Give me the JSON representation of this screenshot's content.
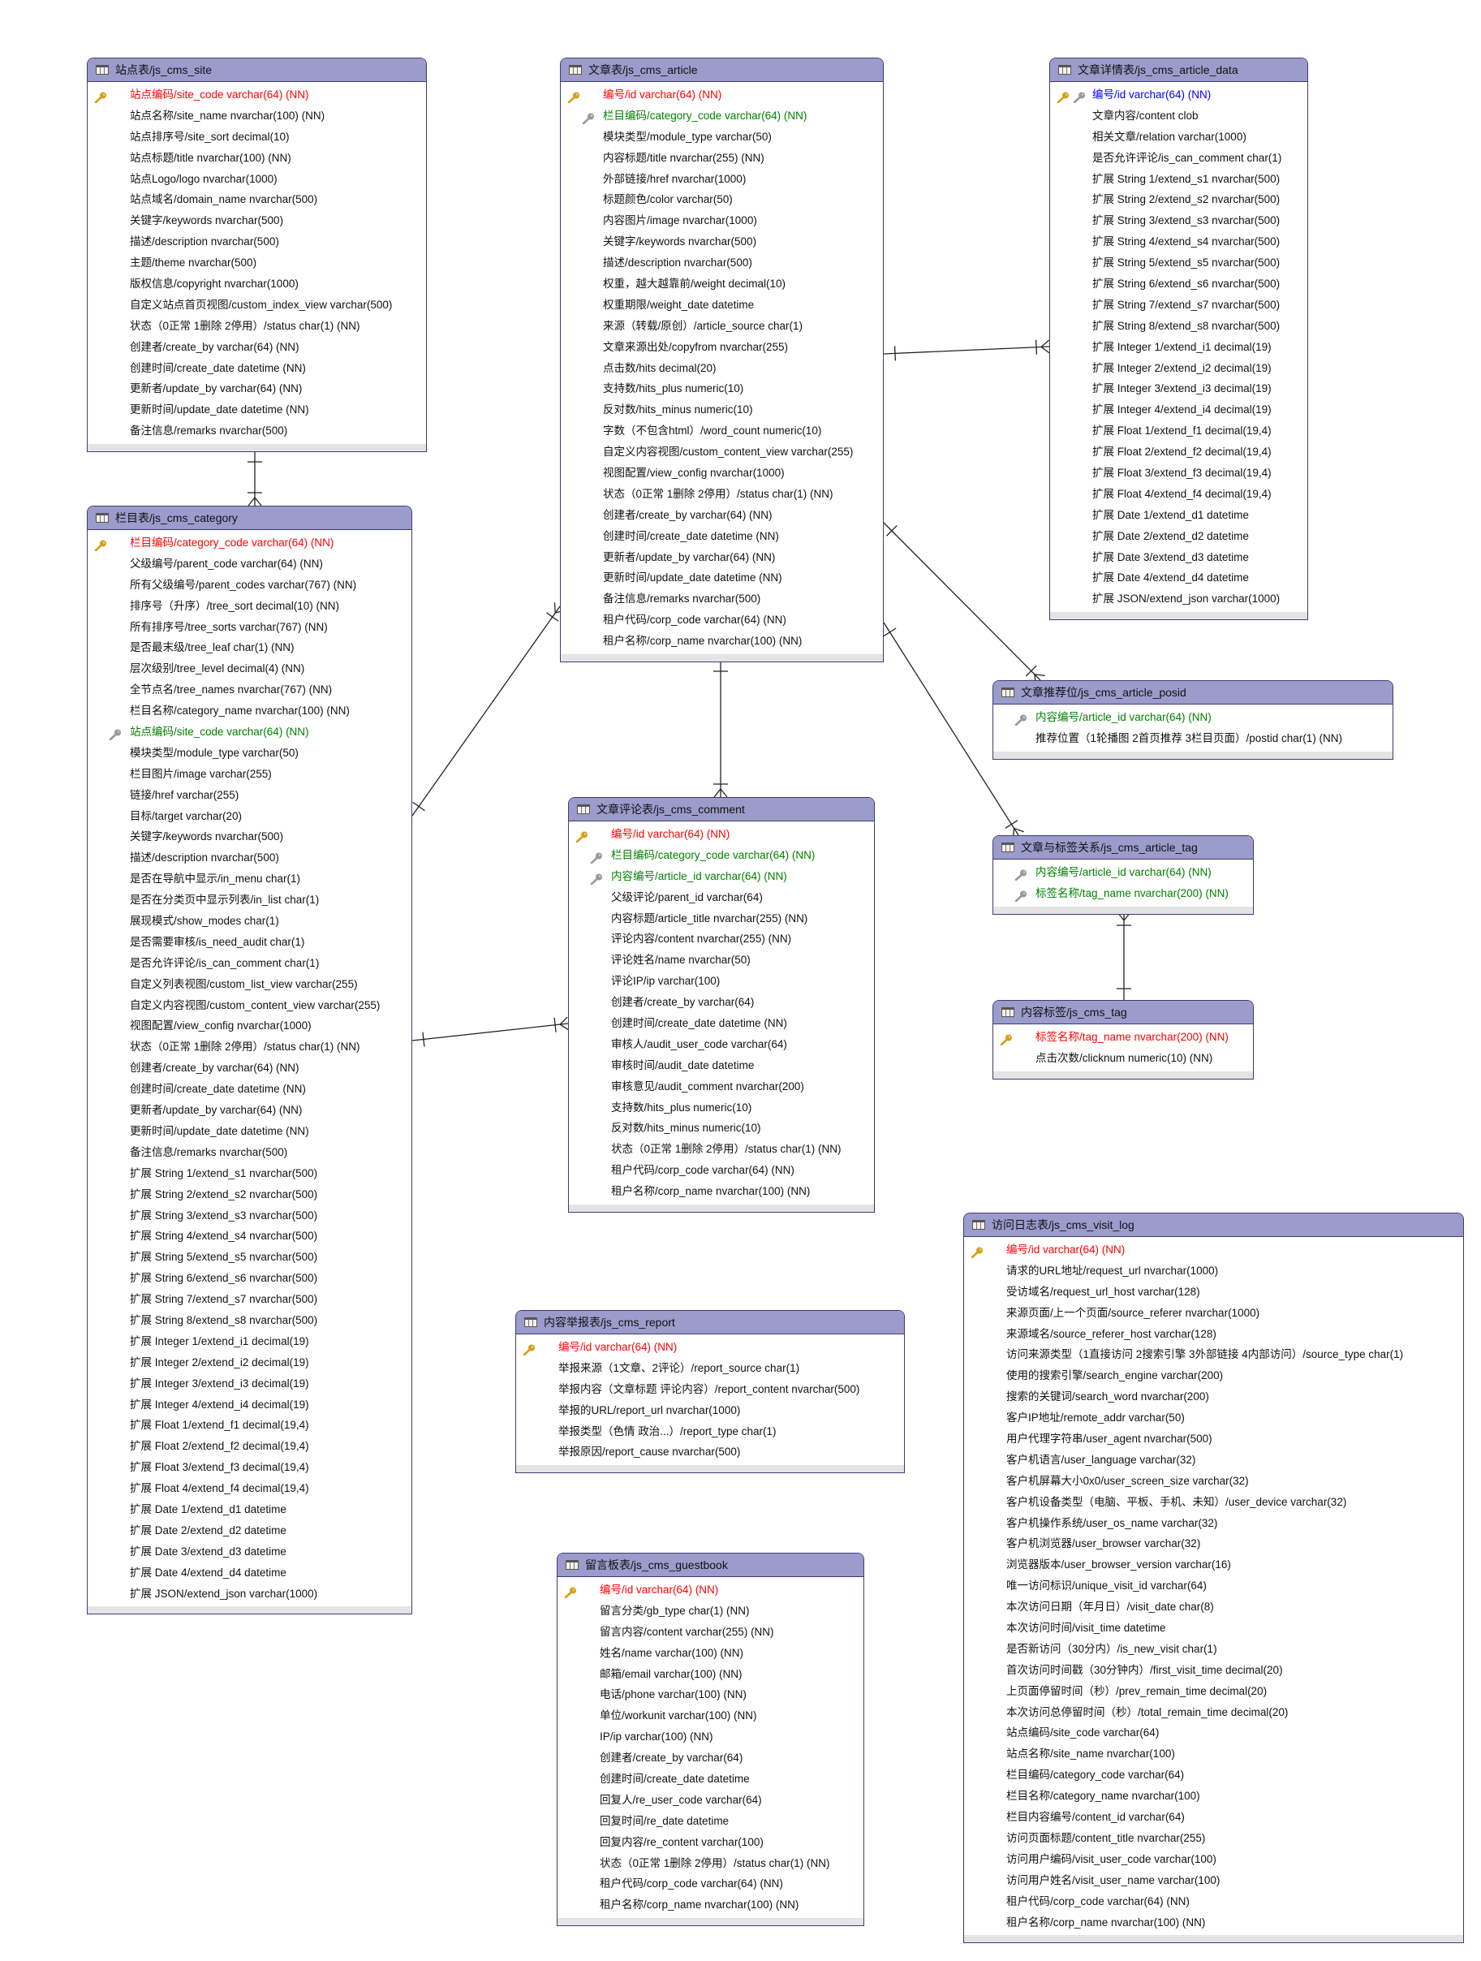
{
  "colors": {
    "header": "#9b9bcc",
    "border": "#3c3c78",
    "primary_key": "#ff0000",
    "foreign_key": "#008000",
    "primary_foreign_key": "#0000ff",
    "pk_icon": "#d4a017",
    "fk_icon": "#999999"
  },
  "tables": [
    {
      "id": "site",
      "title": "站点表/js_cms_site",
      "fields": [
        {
          "text": "站点编码/site_code varchar(64) (NN)",
          "kind": "pk"
        },
        {
          "text": "站点名称/site_name nvarchar(100) (NN)"
        },
        {
          "text": "站点排序号/site_sort decimal(10)"
        },
        {
          "text": "站点标题/title nvarchar(100) (NN)"
        },
        {
          "text": "站点Logo/logo nvarchar(1000)"
        },
        {
          "text": "站点域名/domain_name nvarchar(500)"
        },
        {
          "text": "关键字/keywords nvarchar(500)"
        },
        {
          "text": "描述/description nvarchar(500)"
        },
        {
          "text": "主题/theme nvarchar(500)"
        },
        {
          "text": "版权信息/copyright nvarchar(1000)"
        },
        {
          "text": "自定义站点首页视图/custom_index_view varchar(500)"
        },
        {
          "text": "状态（0正常 1删除 2停用）/status char(1) (NN)"
        },
        {
          "text": "创建者/create_by varchar(64) (NN)"
        },
        {
          "text": "创建时间/create_date datetime (NN)"
        },
        {
          "text": "更新者/update_by varchar(64) (NN)"
        },
        {
          "text": "更新时间/update_date datetime (NN)"
        },
        {
          "text": "备注信息/remarks nvarchar(500)"
        }
      ]
    },
    {
      "id": "article",
      "title": "文章表/js_cms_article",
      "fields": [
        {
          "text": "编号/id varchar(64) (NN)",
          "kind": "pk"
        },
        {
          "text": "栏目编码/category_code varchar(64) (NN)",
          "kind": "fk"
        },
        {
          "text": "模块类型/module_type varchar(50)"
        },
        {
          "text": "内容标题/title nvarchar(255) (NN)"
        },
        {
          "text": "外部链接/href nvarchar(1000)"
        },
        {
          "text": "标题颜色/color varchar(50)"
        },
        {
          "text": "内容图片/image nvarchar(1000)"
        },
        {
          "text": "关键字/keywords nvarchar(500)"
        },
        {
          "text": "描述/description nvarchar(500)"
        },
        {
          "text": "权重，越大越靠前/weight decimal(10)"
        },
        {
          "text": "权重期限/weight_date datetime"
        },
        {
          "text": "来源（转载/原创）/article_source char(1)"
        },
        {
          "text": "文章来源出处/copyfrom nvarchar(255)"
        },
        {
          "text": "点击数/hits decimal(20)"
        },
        {
          "text": "支持数/hits_plus numeric(10)"
        },
        {
          "text": "反对数/hits_minus numeric(10)"
        },
        {
          "text": "字数（不包含html）/word_count numeric(10)"
        },
        {
          "text": "自定义内容视图/custom_content_view varchar(255)"
        },
        {
          "text": "视图配置/view_config nvarchar(1000)"
        },
        {
          "text": "状态（0正常 1删除 2停用）/status char(1) (NN)"
        },
        {
          "text": "创建者/create_by varchar(64) (NN)"
        },
        {
          "text": "创建时间/create_date datetime (NN)"
        },
        {
          "text": "更新者/update_by varchar(64) (NN)"
        },
        {
          "text": "更新时间/update_date datetime (NN)"
        },
        {
          "text": "备注信息/remarks nvarchar(500)"
        },
        {
          "text": "租户代码/corp_code varchar(64) (NN)"
        },
        {
          "text": "租户名称/corp_name nvarchar(100) (NN)"
        }
      ]
    },
    {
      "id": "article_data",
      "title": "文章详情表/js_cms_article_data",
      "fields": [
        {
          "text": "编号/id varchar(64) (NN)",
          "kind": "pkfk"
        },
        {
          "text": "文章内容/content clob"
        },
        {
          "text": "相关文章/relation varchar(1000)"
        },
        {
          "text": "是否允许评论/is_can_comment char(1)"
        },
        {
          "text": "扩展 String 1/extend_s1 nvarchar(500)"
        },
        {
          "text": "扩展 String 2/extend_s2 nvarchar(500)"
        },
        {
          "text": "扩展 String 3/extend_s3 nvarchar(500)"
        },
        {
          "text": "扩展 String 4/extend_s4 nvarchar(500)"
        },
        {
          "text": "扩展 String 5/extend_s5 nvarchar(500)"
        },
        {
          "text": "扩展 String 6/extend_s6 nvarchar(500)"
        },
        {
          "text": "扩展 String 7/extend_s7 nvarchar(500)"
        },
        {
          "text": "扩展 String 8/extend_s8 nvarchar(500)"
        },
        {
          "text": "扩展 Integer 1/extend_i1 decimal(19)"
        },
        {
          "text": "扩展 Integer 2/extend_i2 decimal(19)"
        },
        {
          "text": "扩展 Integer 3/extend_i3 decimal(19)"
        },
        {
          "text": "扩展 Integer 4/extend_i4 decimal(19)"
        },
        {
          "text": "扩展 Float 1/extend_f1 decimal(19,4)"
        },
        {
          "text": "扩展 Float 2/extend_f2 decimal(19,4)"
        },
        {
          "text": "扩展 Float 3/extend_f3 decimal(19,4)"
        },
        {
          "text": "扩展 Float 4/extend_f4 decimal(19,4)"
        },
        {
          "text": "扩展 Date 1/extend_d1 datetime"
        },
        {
          "text": "扩展 Date 2/extend_d2 datetime"
        },
        {
          "text": "扩展 Date 3/extend_d3 datetime"
        },
        {
          "text": "扩展 Date 4/extend_d4 datetime"
        },
        {
          "text": "扩展 JSON/extend_json varchar(1000)"
        }
      ]
    },
    {
      "id": "category",
      "title": "栏目表/js_cms_category",
      "fields": [
        {
          "text": "栏目编码/category_code varchar(64) (NN)",
          "kind": "pk"
        },
        {
          "text": "父级编号/parent_code varchar(64) (NN)"
        },
        {
          "text": "所有父级编号/parent_codes varchar(767) (NN)"
        },
        {
          "text": "排序号（升序）/tree_sort decimal(10) (NN)"
        },
        {
          "text": "所有排序号/tree_sorts varchar(767) (NN)"
        },
        {
          "text": "是否最末级/tree_leaf char(1) (NN)"
        },
        {
          "text": "层次级别/tree_level decimal(4) (NN)"
        },
        {
          "text": "全节点名/tree_names nvarchar(767) (NN)"
        },
        {
          "text": "栏目名称/category_name nvarchar(100) (NN)"
        },
        {
          "text": "站点编码/site_code varchar(64) (NN)",
          "kind": "fk"
        },
        {
          "text": "模块类型/module_type varchar(50)"
        },
        {
          "text": "栏目图片/image varchar(255)"
        },
        {
          "text": "链接/href varchar(255)"
        },
        {
          "text": "目标/target varchar(20)"
        },
        {
          "text": "关键字/keywords nvarchar(500)"
        },
        {
          "text": "描述/description nvarchar(500)"
        },
        {
          "text": "是否在导航中显示/in_menu char(1)"
        },
        {
          "text": "是否在分类页中显示列表/in_list char(1)"
        },
        {
          "text": "展现模式/show_modes char(1)"
        },
        {
          "text": "是否需要审核/is_need_audit char(1)"
        },
        {
          "text": "是否允许评论/is_can_comment char(1)"
        },
        {
          "text": "自定义列表视图/custom_list_view varchar(255)"
        },
        {
          "text": "自定义内容视图/custom_content_view varchar(255)"
        },
        {
          "text": "视图配置/view_config nvarchar(1000)"
        },
        {
          "text": "状态（0正常 1删除 2停用）/status char(1) (NN)"
        },
        {
          "text": "创建者/create_by varchar(64) (NN)"
        },
        {
          "text": "创建时间/create_date datetime (NN)"
        },
        {
          "text": "更新者/update_by varchar(64) (NN)"
        },
        {
          "text": "更新时间/update_date datetime (NN)"
        },
        {
          "text": "备注信息/remarks nvarchar(500)"
        },
        {
          "text": "扩展 String 1/extend_s1 nvarchar(500)"
        },
        {
          "text": "扩展 String 2/extend_s2 nvarchar(500)"
        },
        {
          "text": "扩展 String 3/extend_s3 nvarchar(500)"
        },
        {
          "text": "扩展 String 4/extend_s4 nvarchar(500)"
        },
        {
          "text": "扩展 String 5/extend_s5 nvarchar(500)"
        },
        {
          "text": "扩展 String 6/extend_s6 nvarchar(500)"
        },
        {
          "text": "扩展 String 7/extend_s7 nvarchar(500)"
        },
        {
          "text": "扩展 String 8/extend_s8 nvarchar(500)"
        },
        {
          "text": "扩展 Integer 1/extend_i1 decimal(19)"
        },
        {
          "text": "扩展 Integer 2/extend_i2 decimal(19)"
        },
        {
          "text": "扩展 Integer 3/extend_i3 decimal(19)"
        },
        {
          "text": "扩展 Integer 4/extend_i4 decimal(19)"
        },
        {
          "text": "扩展 Float 1/extend_f1 decimal(19,4)"
        },
        {
          "text": "扩展 Float 2/extend_f2 decimal(19,4)"
        },
        {
          "text": "扩展 Float 3/extend_f3 decimal(19,4)"
        },
        {
          "text": "扩展 Float 4/extend_f4 decimal(19,4)"
        },
        {
          "text": "扩展 Date 1/extend_d1 datetime"
        },
        {
          "text": "扩展 Date 2/extend_d2 datetime"
        },
        {
          "text": "扩展 Date 3/extend_d3 datetime"
        },
        {
          "text": "扩展 Date 4/extend_d4 datetime"
        },
        {
          "text": "扩展 JSON/extend_json varchar(1000)"
        }
      ]
    },
    {
      "id": "posid",
      "title": "文章推荐位/js_cms_article_posid",
      "fields": [
        {
          "text": "内容编号/article_id varchar(64) (NN)",
          "kind": "fk"
        },
        {
          "text": "推荐位置（1轮播图 2首页推荐 3栏目页面）/postid char(1) (NN)"
        }
      ]
    },
    {
      "id": "comment",
      "title": "文章评论表/js_cms_comment",
      "fields": [
        {
          "text": "编号/id varchar(64) (NN)",
          "kind": "pk"
        },
        {
          "text": "栏目编码/category_code varchar(64) (NN)",
          "kind": "fk"
        },
        {
          "text": "内容编号/article_id varchar(64) (NN)",
          "kind": "fk"
        },
        {
          "text": "父级评论/parent_id varchar(64)"
        },
        {
          "text": "内容标题/article_title nvarchar(255) (NN)"
        },
        {
          "text": "评论内容/content nvarchar(255) (NN)"
        },
        {
          "text": "评论姓名/name nvarchar(50)"
        },
        {
          "text": "评论IP/ip varchar(100)"
        },
        {
          "text": "创建者/create_by varchar(64)"
        },
        {
          "text": "创建时间/create_date datetime (NN)"
        },
        {
          "text": "审核人/audit_user_code varchar(64)"
        },
        {
          "text": "审核时间/audit_date datetime"
        },
        {
          "text": "审核意见/audit_comment nvarchar(200)"
        },
        {
          "text": "支持数/hits_plus numeric(10)"
        },
        {
          "text": "反对数/hits_minus numeric(10)"
        },
        {
          "text": "状态（0正常 1删除 2停用）/status char(1) (NN)"
        },
        {
          "text": "租户代码/corp_code varchar(64) (NN)"
        },
        {
          "text": "租户名称/corp_name nvarchar(100) (NN)"
        }
      ]
    },
    {
      "id": "article_tag",
      "title": "文章与标签关系/js_cms_article_tag",
      "fields": [
        {
          "text": "内容编号/article_id varchar(64) (NN)",
          "kind": "fk"
        },
        {
          "text": "标签名称/tag_name nvarchar(200) (NN)",
          "kind": "fk"
        }
      ]
    },
    {
      "id": "tag",
      "title": "内容标签/js_cms_tag",
      "fields": [
        {
          "text": "标签名称/tag_name nvarchar(200) (NN)",
          "kind": "pk"
        },
        {
          "text": "点击次数/clicknum numeric(10) (NN)"
        }
      ]
    },
    {
      "id": "visit_log",
      "title": "访问日志表/js_cms_visit_log",
      "fields": [
        {
          "text": "编号/id varchar(64) (NN)",
          "kind": "pk"
        },
        {
          "text": "请求的URL地址/request_url nvarchar(1000)"
        },
        {
          "text": "受访域名/request_url_host varchar(128)"
        },
        {
          "text": "来源页面/上一个页面/source_referer nvarchar(1000)"
        },
        {
          "text": "来源域名/source_referer_host varchar(128)"
        },
        {
          "text": "访问来源类型（1直接访问 2搜索引擎 3外部链接 4内部访问）/source_type char(1)"
        },
        {
          "text": "使用的搜索引擎/search_engine varchar(200)"
        },
        {
          "text": "搜索的关键词/search_word nvarchar(200)"
        },
        {
          "text": "客户IP地址/remote_addr varchar(50)"
        },
        {
          "text": "用户代理字符串/user_agent nvarchar(500)"
        },
        {
          "text": "客户机语言/user_language varchar(32)"
        },
        {
          "text": "客户机屏幕大小0x0/user_screen_size varchar(32)"
        },
        {
          "text": "客户机设备类型（电脑、平板、手机、未知）/user_device varchar(32)"
        },
        {
          "text": "客户机操作系统/user_os_name varchar(32)"
        },
        {
          "text": "客户机浏览器/user_browser varchar(32)"
        },
        {
          "text": "浏览器版本/user_browser_version varchar(16)"
        },
        {
          "text": "唯一访问标识/unique_visit_id varchar(64)"
        },
        {
          "text": "本次访问日期（年月日）/visit_date char(8)"
        },
        {
          "text": "本次访问时间/visit_time datetime"
        },
        {
          "text": "是否新访问（30分内）/is_new_visit char(1)"
        },
        {
          "text": "首次访问时间戳（30分钟内）/first_visit_time decimal(20)"
        },
        {
          "text": "上页面停留时间（秒）/prev_remain_time decimal(20)"
        },
        {
          "text": "本次访问总停留时间（秒）/total_remain_time decimal(20)"
        },
        {
          "text": "站点编码/site_code varchar(64)"
        },
        {
          "text": "站点名称/site_name nvarchar(100)"
        },
        {
          "text": "栏目编码/category_code varchar(64)"
        },
        {
          "text": "栏目名称/category_name nvarchar(100)"
        },
        {
          "text": "栏目内容编号/content_id varchar(64)"
        },
        {
          "text": "访问页面标题/content_title nvarchar(255)"
        },
        {
          "text": "访问用户编码/visit_user_code varchar(100)"
        },
        {
          "text": "访问用户姓名/visit_user_name varchar(100)"
        },
        {
          "text": "租户代码/corp_code varchar(64) (NN)"
        },
        {
          "text": "租户名称/corp_name nvarchar(100) (NN)"
        }
      ]
    },
    {
      "id": "report",
      "title": "内容举报表/js_cms_report",
      "fields": [
        {
          "text": "编号/id varchar(64) (NN)",
          "kind": "pk"
        },
        {
          "text": "举报来源（1文章、2评论）/report_source char(1)"
        },
        {
          "text": "举报内容（文章标题 评论内容）/report_content nvarchar(500)"
        },
        {
          "text": "举报的URL/report_url nvarchar(1000)"
        },
        {
          "text": "举报类型（色情 政治...）/report_type char(1)"
        },
        {
          "text": "举报原因/report_cause nvarchar(500)"
        }
      ]
    },
    {
      "id": "guestbook",
      "title": "留言板表/js_cms_guestbook",
      "fields": [
        {
          "text": "编号/id varchar(64) (NN)",
          "kind": "pk"
        },
        {
          "text": "留言分类/gb_type char(1) (NN)"
        },
        {
          "text": "留言内容/content varchar(255) (NN)"
        },
        {
          "text": "姓名/name varchar(100) (NN)"
        },
        {
          "text": "邮箱/email varchar(100) (NN)"
        },
        {
          "text": "电话/phone varchar(100) (NN)"
        },
        {
          "text": "单位/workunit varchar(100) (NN)"
        },
        {
          "text": "IP/ip varchar(100) (NN)"
        },
        {
          "text": "创建者/create_by varchar(64)"
        },
        {
          "text": "创建时间/create_date datetime"
        },
        {
          "text": "回复人/re_user_code varchar(64)"
        },
        {
          "text": "回复时间/re_date datetime"
        },
        {
          "text": "回复内容/re_content varchar(100)"
        },
        {
          "text": "状态（0正常 1删除 2停用）/status char(1) (NN)"
        },
        {
          "text": "租户代码/corp_code varchar(64) (NN)"
        },
        {
          "text": "租户名称/corp_name nvarchar(100) (NN)"
        }
      ]
    }
  ],
  "relationships": [
    {
      "from": "site",
      "to": "category"
    },
    {
      "from": "category",
      "to": "article"
    },
    {
      "from": "category",
      "to": "comment"
    },
    {
      "from": "article",
      "to": "comment"
    },
    {
      "from": "article",
      "to": "article_data"
    },
    {
      "from": "article",
      "to": "posid"
    },
    {
      "from": "article",
      "to": "article_tag"
    },
    {
      "from": "tag",
      "to": "article_tag"
    }
  ]
}
